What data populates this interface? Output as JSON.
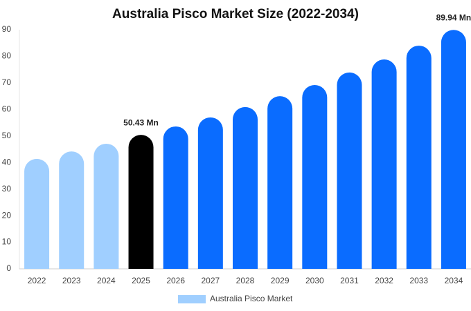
{
  "chart_data": {
    "type": "bar",
    "title": "Australia Pisco Market Size (2022-2034)",
    "categories": [
      "2022",
      "2023",
      "2024",
      "2025",
      "2026",
      "2027",
      "2028",
      "2029",
      "2030",
      "2031",
      "2032",
      "2033",
      "2034"
    ],
    "series": [
      {
        "name": "Australia Pisco Market",
        "color": "#a0cfff",
        "colors": [
          "#a0cfff",
          "#a0cfff",
          "#a0cfff",
          "#000000",
          "#0a6cff",
          "#0a6cff",
          "#0a6cff",
          "#0a6cff",
          "#0a6cff",
          "#0a6cff",
          "#0a6cff",
          "#0a6cff",
          "#0a6cff"
        ],
        "values": [
          41.4,
          44.2,
          47.1,
          50.43,
          53.6,
          57,
          60.9,
          65,
          69.2,
          73.9,
          78.8,
          84,
          89.94
        ],
        "value_labels": [
          null,
          null,
          null,
          "50.43 Mn",
          null,
          null,
          null,
          null,
          null,
          null,
          null,
          null,
          "89.94 Mn"
        ]
      }
    ],
    "ylim": [
      0,
      90
    ],
    "yticks": [
      0,
      10,
      20,
      30,
      40,
      50,
      60,
      70,
      80,
      90
    ],
    "grid": false
  }
}
